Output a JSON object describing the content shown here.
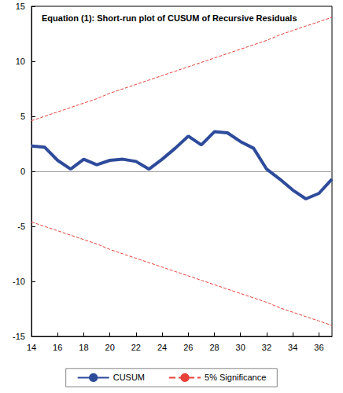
{
  "chart_data": {
    "type": "line",
    "title": "Equation (1): Short-run plot of CUSUM of Recursive Residuals",
    "x": [
      14,
      15,
      16,
      17,
      18,
      19,
      20,
      21,
      22,
      23,
      24,
      25,
      26,
      27,
      28,
      29,
      30,
      31,
      32,
      33,
      34,
      35,
      36,
      37
    ],
    "series": [
      {
        "name": "CUSUM",
        "color": "#2e4b9b",
        "line_style": "solid",
        "values": [
          2.3,
          2.2,
          1.0,
          0.2,
          1.1,
          0.6,
          1.0,
          1.1,
          0.9,
          0.2,
          1.1,
          2.1,
          3.2,
          2.4,
          3.6,
          3.5,
          2.7,
          2.1,
          0.2,
          -0.7,
          -1.7,
          -2.5,
          -2.0,
          -0.7
        ]
      },
      {
        "name": "5% Significance",
        "color": "#e8413a",
        "line_style": "dashed",
        "values": [
          4.6,
          5.0,
          5.4,
          5.8,
          6.2,
          6.6,
          7.1,
          7.5,
          7.9,
          8.3,
          8.7,
          9.1,
          9.5,
          9.9,
          10.3,
          10.7,
          11.1,
          11.5,
          11.9,
          12.4,
          12.8,
          13.2,
          13.6,
          14.0
        ]
      },
      {
        "name": "5% Significance",
        "color": "#e8413a",
        "line_style": "dashed",
        "values": [
          -4.6,
          -5.0,
          -5.4,
          -5.8,
          -6.2,
          -6.6,
          -7.1,
          -7.5,
          -7.9,
          -8.3,
          -8.7,
          -9.1,
          -9.5,
          -9.9,
          -10.3,
          -10.7,
          -11.1,
          -11.5,
          -11.9,
          -12.4,
          -12.8,
          -13.2,
          -13.6,
          -14.0
        ]
      }
    ],
    "xlim": [
      14,
      37
    ],
    "xticks": [
      14,
      16,
      18,
      20,
      22,
      24,
      26,
      28,
      30,
      32,
      34,
      36
    ],
    "ylim": [
      -15,
      15
    ],
    "yticks": [
      -15,
      -10,
      -5,
      0,
      5,
      10,
      15
    ],
    "grid": false,
    "legend": "bottom"
  }
}
